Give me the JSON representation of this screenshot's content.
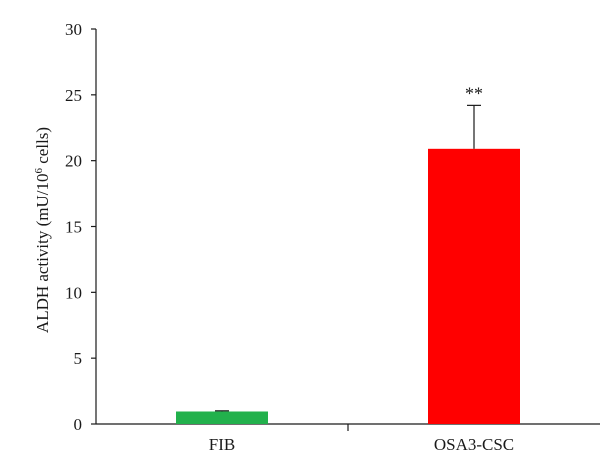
{
  "chart_data": {
    "type": "bar",
    "categories": [
      "FIB",
      "OSA3-CSC"
    ],
    "values": [
      0.95,
      20.9
    ],
    "errors": [
      0.05,
      3.3
    ],
    "colors": [
      "#22b14c",
      "#ff0000"
    ],
    "annotations": [
      "",
      "**"
    ],
    "ylabel_main": "ALDH activity (mU/10",
    "ylabel_sup": "6",
    "ylabel_tail": " cells)",
    "xlabel": "",
    "ylim": [
      0,
      30
    ],
    "yticks": [
      "0",
      "5",
      "10",
      "15",
      "20",
      "25",
      "30"
    ],
    "grid": false,
    "legend": "none"
  }
}
